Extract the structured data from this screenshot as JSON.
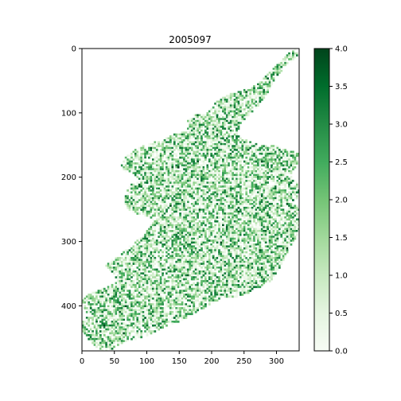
{
  "chart_data": {
    "type": "heatmap",
    "title": "2005097",
    "xlabel": "",
    "ylabel": "",
    "xlim": [
      0,
      335
    ],
    "ylim": [
      470,
      0
    ],
    "x_ticks": [
      0,
      50,
      100,
      150,
      200,
      250,
      300
    ],
    "y_ticks": [
      0,
      100,
      200,
      300,
      400
    ],
    "colormap": "Greens",
    "colorbar": {
      "min": 0.0,
      "max": 4.0,
      "ticks": [
        "0.0",
        "0.5",
        "1.0",
        "1.5",
        "2.0",
        "2.5",
        "3.0",
        "3.5",
        "4.0"
      ]
    },
    "grid": false,
    "colors": {
      "low": "#f7fcf5",
      "mid": "#74c476",
      "high": "#00441b"
    }
  }
}
